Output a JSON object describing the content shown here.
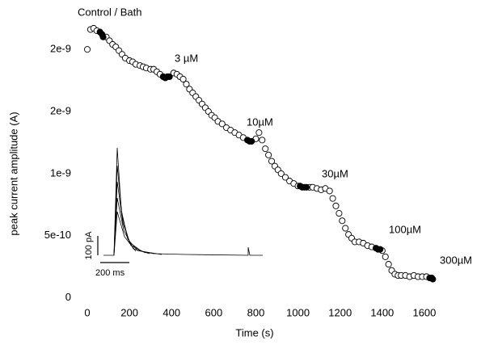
{
  "chart_data": {
    "type": "scatter",
    "title": "Control / Bath",
    "xlabel": "Time (s)",
    "ylabel": "peak current amplitude (A)",
    "annotations": [
      "3 µM",
      "10µM",
      "30µM",
      "100µM",
      "300µM",
      "100 pA",
      "200 ms"
    ],
    "xlim": [
      -50,
      1700
    ],
    "xticks": [
      0,
      200,
      400,
      600,
      800,
      1000,
      1200,
      1400,
      1600
    ],
    "ylim": [
      -1e-10,
      2.3e-09
    ],
    "yticks": [
      0,
      {
        "value": 5e-10,
        "label": "5e-10"
      },
      {
        "value": 1e-09,
        "label": "1e-9"
      },
      {
        "value": 1.5e-09,
        "label": "2e-9"
      },
      {
        "value": 2e-09,
        "label": "2e-9"
      }
    ],
    "series": [
      {
        "color": "#ffffff",
        "x": [
          0,
          15,
          30,
          45,
          90,
          105,
          120,
          135,
          150,
          165,
          180,
          200,
          215,
          230,
          250,
          265,
          280,
          300,
          315,
          330,
          345,
          410,
          425,
          440,
          455,
          470,
          485,
          500,
          515,
          530,
          545,
          560,
          575,
          590,
          605,
          620,
          640,
          660,
          680,
          700,
          720,
          740,
          800,
          815,
          830,
          845,
          860,
          875,
          890,
          905,
          920,
          940,
          960,
          980,
          1000,
          1055,
          1070,
          1090,
          1110,
          1130,
          1150,
          1165,
          1180,
          1195,
          1210,
          1225,
          1240,
          1255,
          1270,
          1290,
          1310,
          1330,
          1350,
          1400,
          1415,
          1430,
          1445,
          1460,
          1475,
          1490,
          1510,
          1530,
          1550,
          1570,
          1590,
          1610
        ],
        "values": [
          2e-09,
          2.16e-09,
          2.17e-09,
          2.15e-09,
          2.1e-09,
          2.07e-09,
          2.04e-09,
          2.02e-09,
          1.99e-09,
          1.96e-09,
          1.93e-09,
          1.91e-09,
          1.9e-09,
          1.88e-09,
          1.87e-09,
          1.86e-09,
          1.85e-09,
          1.84e-09,
          1.84e-09,
          1.82e-09,
          1.8e-09,
          1.81e-09,
          1.8e-09,
          1.78e-09,
          1.76e-09,
          1.72e-09,
          1.68e-09,
          1.65e-09,
          1.62e-09,
          1.59e-09,
          1.56e-09,
          1.53e-09,
          1.5e-09,
          1.47e-09,
          1.45e-09,
          1.42e-09,
          1.4e-09,
          1.37e-09,
          1.35e-09,
          1.33e-09,
          1.31e-09,
          1.29e-09,
          1.28e-09,
          1.33e-09,
          1.27e-09,
          1.2e-09,
          1.15e-09,
          1.1e-09,
          1.06e-09,
          1.03e-09,
          1e-09,
          9.7e-10,
          9.4e-10,
          9.2e-10,
          9e-10,
          8.9e-10,
          8.9e-10,
          8.8e-10,
          8.7e-10,
          8.8e-10,
          8.6e-10,
          8e-10,
          7.4e-10,
          6.8e-10,
          6.2e-10,
          5.6e-10,
          5.1e-10,
          4.8e-10,
          4.5e-10,
          4.5e-10,
          4.4e-10,
          4.2e-10,
          4.1e-10,
          3.8e-10,
          3.3e-10,
          2.7e-10,
          2.2e-10,
          1.9e-10,
          1.8e-10,
          1.8e-10,
          1.8e-10,
          1.7e-10,
          1.8e-10,
          1.7e-10,
          1.7e-10,
          1.7e-10
        ]
      },
      {
        "color": "#000000",
        "x": [
          60,
          70,
          75,
          360,
          370,
          380,
          390,
          760,
          770,
          780,
          1010,
          1020,
          1030,
          1040,
          1370,
          1380,
          1390,
          1625,
          1635,
          1640
        ],
        "values": [
          2.14e-09,
          2.12e-09,
          2.1e-09,
          1.78e-09,
          1.77e-09,
          1.78e-09,
          1.78e-09,
          1.27e-09,
          1.26e-09,
          1.26e-09,
          9e-10,
          8.9e-10,
          8.9e-10,
          8.9e-10,
          4e-10,
          3.9e-10,
          3.9e-10,
          1.6e-10,
          1.6e-10,
          1.5e-10
        ]
      }
    ]
  }
}
